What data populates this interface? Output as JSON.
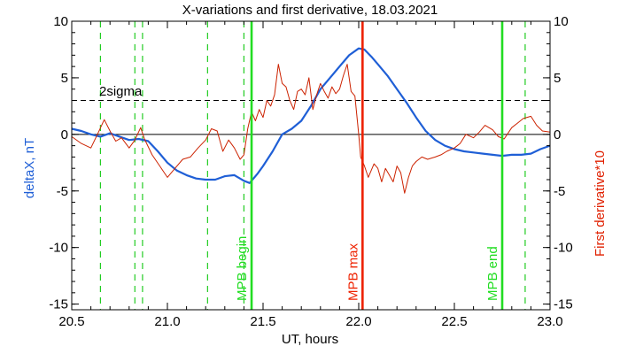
{
  "chart_data": {
    "type": "line",
    "title": "X-variations and first derivative, 18.03.2021",
    "xlabel": "UT, hours",
    "ylabel_left": "deltaX, nT",
    "ylabel_right": "First derivative*10",
    "xlim": [
      20.5,
      23.0
    ],
    "ylim": [
      -15.5,
      10
    ],
    "xticks": [
      "20.5",
      "21.0",
      "21.5",
      "22.0",
      "22.5",
      "23.0"
    ],
    "yticks": [
      "10",
      "5",
      "0",
      "-5",
      "-10",
      "-15"
    ],
    "sigma_label": "2sigma",
    "sigma_value": 3,
    "colors": {
      "deltaX": "#1f5fd6",
      "derivative": "#cc2200",
      "mpb_max": "#ee2200",
      "mpb_edges": "#22dd22",
      "dashed_green": "#22cc22"
    },
    "series": [
      {
        "name": "deltaX, nT",
        "x": [
          20.5,
          20.55,
          20.6,
          20.65,
          20.7,
          20.75,
          20.8,
          20.85,
          20.9,
          20.95,
          21.0,
          21.05,
          21.1,
          21.15,
          21.2,
          21.25,
          21.3,
          21.35,
          21.4,
          21.43,
          21.47,
          21.5,
          21.55,
          21.6,
          21.65,
          21.7,
          21.75,
          21.8,
          21.85,
          21.9,
          21.95,
          22.0,
          22.03,
          22.07,
          22.1,
          22.15,
          22.2,
          22.25,
          22.3,
          22.35,
          22.4,
          22.45,
          22.5,
          22.55,
          22.6,
          22.65,
          22.7,
          22.75,
          22.8,
          22.85,
          22.9,
          22.95,
          23.0
        ],
        "values": [
          0.5,
          0.3,
          0.0,
          -0.2,
          0.1,
          -0.2,
          -0.5,
          -0.4,
          -0.6,
          -1.5,
          -2.5,
          -3.2,
          -3.6,
          -3.9,
          -4.0,
          -4.0,
          -3.7,
          -3.6,
          -4.1,
          -4.3,
          -3.5,
          -2.8,
          -1.5,
          0.0,
          0.5,
          1.2,
          2.5,
          4.0,
          5.0,
          6.0,
          7.0,
          7.6,
          7.5,
          6.8,
          6.2,
          5.2,
          4.0,
          2.8,
          1.5,
          0.3,
          -0.5,
          -1.0,
          -1.3,
          -1.5,
          -1.6,
          -1.7,
          -1.8,
          -1.9,
          -1.8,
          -1.8,
          -1.7,
          -1.3,
          -1.0
        ]
      },
      {
        "name": "First derivative*10",
        "x": [
          20.5,
          20.55,
          20.6,
          20.64,
          20.67,
          20.7,
          20.73,
          20.76,
          20.8,
          20.83,
          20.86,
          20.88,
          20.92,
          20.96,
          21.0,
          21.04,
          21.08,
          21.12,
          21.16,
          21.2,
          21.23,
          21.26,
          21.29,
          21.32,
          21.35,
          21.38,
          21.4,
          21.42,
          21.44,
          21.46,
          21.48,
          21.5,
          21.52,
          21.54,
          21.56,
          21.58,
          21.6,
          21.62,
          21.64,
          21.66,
          21.68,
          21.7,
          21.72,
          21.74,
          21.76,
          21.78,
          21.8,
          21.82,
          21.84,
          21.86,
          21.88,
          21.9,
          21.92,
          21.94,
          21.96,
          21.98,
          22.0,
          22.01,
          22.03,
          22.05,
          22.08,
          22.1,
          22.12,
          22.14,
          22.16,
          22.18,
          22.2,
          22.22,
          22.24,
          22.26,
          22.28,
          22.3,
          22.33,
          22.36,
          22.4,
          22.43,
          22.46,
          22.5,
          22.53,
          22.56,
          22.6,
          22.63,
          22.66,
          22.7,
          22.73,
          22.76,
          22.8,
          22.83,
          22.86,
          22.9,
          22.93,
          22.96,
          23.0
        ],
        "values": [
          -0.2,
          -0.8,
          -1.2,
          0.2,
          1.3,
          0.3,
          -0.6,
          -0.3,
          -1.2,
          -0.5,
          0.6,
          -0.4,
          -1.8,
          -2.8,
          -3.8,
          -3.0,
          -2.2,
          -2.0,
          -1.2,
          -0.5,
          0.5,
          0.3,
          -1.5,
          -0.5,
          -1.2,
          -2.2,
          -1.8,
          0.5,
          2.0,
          1.2,
          2.2,
          1.5,
          3.0,
          2.5,
          3.5,
          6.2,
          4.5,
          4.2,
          3.0,
          2.2,
          3.8,
          4.0,
          3.5,
          5.0,
          2.2,
          3.5,
          4.5,
          3.8,
          3.2,
          4.2,
          3.6,
          4.0,
          5.2,
          6.2,
          3.8,
          3.4,
          0.0,
          -2.0,
          -2.8,
          -3.8,
          -2.6,
          -3.0,
          -4.2,
          -3.0,
          -3.6,
          -4.2,
          -2.8,
          -3.4,
          -5.2,
          -3.8,
          -2.8,
          -2.4,
          -2.0,
          -2.2,
          -2.0,
          -1.8,
          -1.5,
          -1.2,
          -0.8,
          0.0,
          -0.3,
          0.2,
          0.8,
          0.4,
          -0.2,
          -0.4,
          0.6,
          1.0,
          1.4,
          1.6,
          0.8,
          0.3,
          0.2
        ]
      }
    ],
    "vertical_lines": [
      {
        "x": 21.44,
        "label": "MPB begin",
        "style": "solid",
        "color": "#22dd22"
      },
      {
        "x": 22.02,
        "label": "MPB max",
        "style": "solid",
        "color": "#ee2200"
      },
      {
        "x": 22.75,
        "label": "MPB end",
        "style": "solid",
        "color": "#22dd22"
      },
      {
        "x": 20.65,
        "label": "",
        "style": "dashed",
        "color": "#22cc22"
      },
      {
        "x": 20.83,
        "label": "",
        "style": "dashed",
        "color": "#22cc22"
      },
      {
        "x": 20.87,
        "label": "",
        "style": "dashed",
        "color": "#22cc22"
      },
      {
        "x": 21.21,
        "label": "",
        "style": "dashed",
        "color": "#22cc22"
      },
      {
        "x": 21.4,
        "label": "",
        "style": "dashed",
        "color": "#22cc22"
      },
      {
        "x": 22.87,
        "label": "",
        "style": "dashed",
        "color": "#22cc22"
      }
    ]
  }
}
